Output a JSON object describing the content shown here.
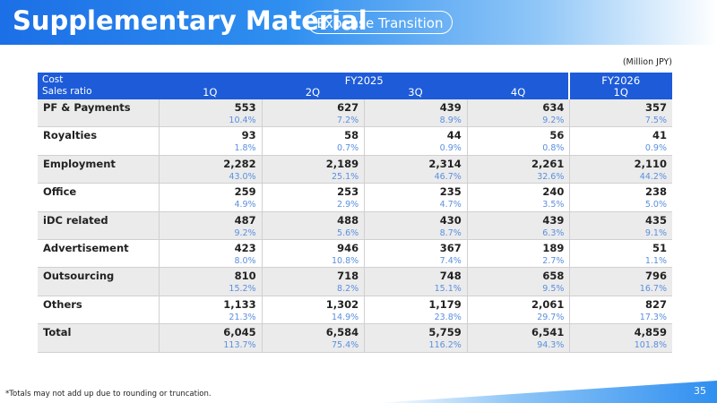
{
  "header": {
    "title": "Supplementary Material",
    "badge": "Expense Transition"
  },
  "unit": "(Million JPY)",
  "table": {
    "head": {
      "cost": "Cost",
      "ratio": "Sales ratio",
      "groups": [
        {
          "label": "FY2025",
          "quarters": [
            "1Q",
            "2Q",
            "3Q",
            "4Q"
          ]
        },
        {
          "label": "FY2026",
          "quarters": [
            "1Q"
          ]
        }
      ]
    },
    "rows": [
      {
        "label": "PF & Payments",
        "amounts": [
          "553",
          "627",
          "439",
          "634",
          "357"
        ],
        "ratios": [
          "10.4%",
          "7.2%",
          "8.9%",
          "9.2%",
          "7.5%"
        ]
      },
      {
        "label": "Royalties",
        "amounts": [
          "93",
          "58",
          "44",
          "56",
          "41"
        ],
        "ratios": [
          "1.8%",
          "0.7%",
          "0.9%",
          "0.8%",
          "0.9%"
        ]
      },
      {
        "label": "Employment",
        "amounts": [
          "2,282",
          "2,189",
          "2,314",
          "2,261",
          "2,110"
        ],
        "ratios": [
          "43.0%",
          "25.1%",
          "46.7%",
          "32.6%",
          "44.2%"
        ]
      },
      {
        "label": "Office",
        "amounts": [
          "259",
          "253",
          "235",
          "240",
          "238"
        ],
        "ratios": [
          "4.9%",
          "2.9%",
          "4.7%",
          "3.5%",
          "5.0%"
        ]
      },
      {
        "label": "iDC related",
        "amounts": [
          "487",
          "488",
          "430",
          "439",
          "435"
        ],
        "ratios": [
          "9.2%",
          "5.6%",
          "8.7%",
          "6.3%",
          "9.1%"
        ]
      },
      {
        "label": "Advertisement",
        "amounts": [
          "423",
          "946",
          "367",
          "189",
          "51"
        ],
        "ratios": [
          "8.0%",
          "10.8%",
          "7.4%",
          "2.7%",
          "1.1%"
        ]
      },
      {
        "label": "Outsourcing",
        "amounts": [
          "810",
          "718",
          "748",
          "658",
          "796"
        ],
        "ratios": [
          "15.2%",
          "8.2%",
          "15.1%",
          "9.5%",
          "16.7%"
        ]
      },
      {
        "label": "Others",
        "amounts": [
          "1,133",
          "1,302",
          "1,179",
          "2,061",
          "827"
        ],
        "ratios": [
          "21.3%",
          "14.9%",
          "23.8%",
          "29.7%",
          "17.3%"
        ]
      },
      {
        "label": "Total",
        "amounts": [
          "6,045",
          "6,584",
          "5,759",
          "6,541",
          "4,859"
        ],
        "ratios": [
          "113.7%",
          "75.4%",
          "116.2%",
          "94.3%",
          "101.8%"
        ]
      }
    ]
  },
  "footnote": "*Totals may not add up due to rounding or truncation.",
  "page": "35"
}
